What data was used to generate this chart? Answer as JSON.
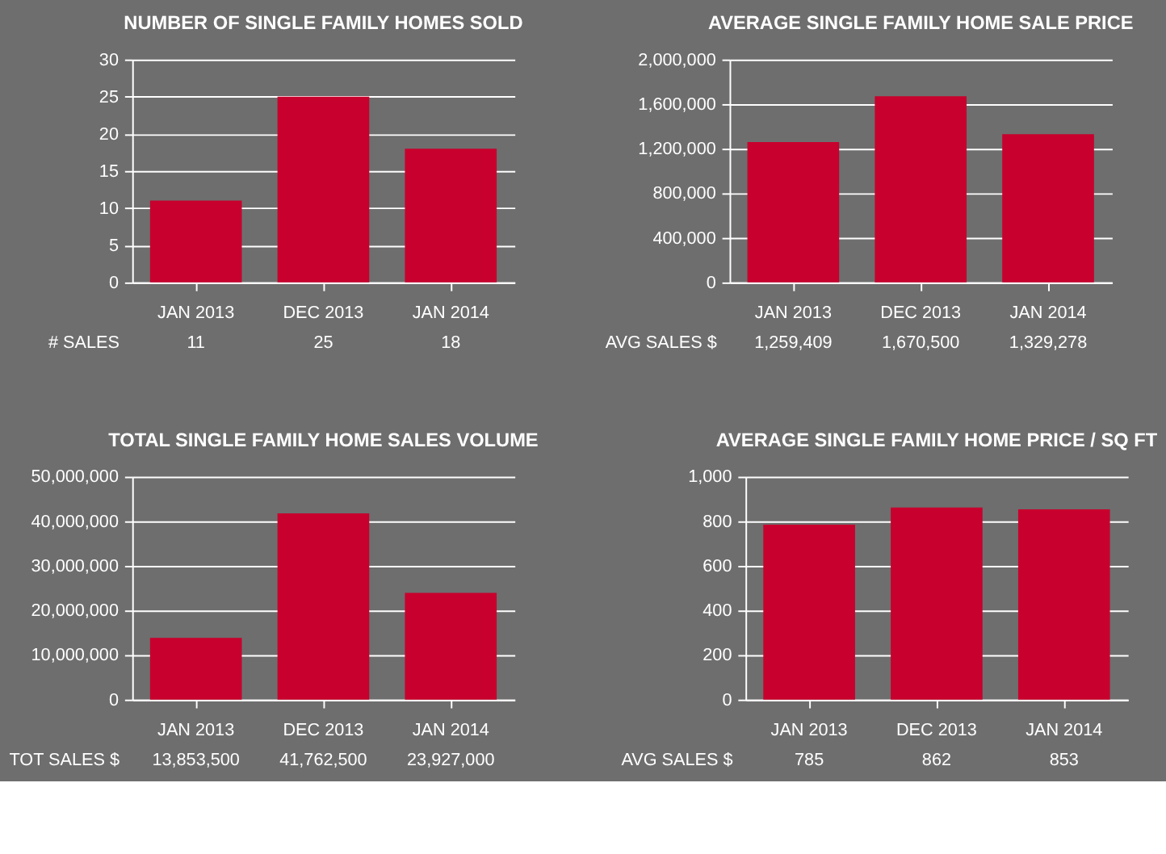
{
  "chart_data": [
    {
      "type": "bar",
      "title": "NUMBER OF SINGLE FAMILY HOMES SOLD",
      "categories": [
        "JAN 2013",
        "DEC 2013",
        "JAN 2014"
      ],
      "values": [
        11,
        25,
        18
      ],
      "color": "#c8002d",
      "ylim": [
        0,
        30
      ],
      "yticks": [
        0,
        5,
        10,
        15,
        20,
        25,
        30
      ],
      "grid": "y",
      "value_labels": [
        "11",
        "25",
        "18"
      ],
      "annotations": [
        "# SALES"
      ]
    },
    {
      "type": "bar",
      "title": "AVERAGE SINGLE FAMILY HOME SALE PRICE",
      "categories": [
        "JAN 2013",
        "DEC 2013",
        "JAN 2014"
      ],
      "values": [
        1259409,
        1670500,
        1329278
      ],
      "color": "#c8002d",
      "ylim": [
        0,
        2000000
      ],
      "yticks": [
        0,
        {
          "value": 400000,
          "label": "400,000"
        },
        {
          "value": 800000,
          "label": "800,000"
        },
        {
          "value": 1200000,
          "label": "1,200,000"
        },
        {
          "value": 1600000,
          "label": "1,600,000"
        },
        {
          "value": 2000000,
          "label": "2,000,000"
        }
      ],
      "grid": "y",
      "value_labels": [
        "1,259,409",
        "1,670,500",
        "1,329,278"
      ],
      "annotations": [
        "AVG SALES $"
      ]
    },
    {
      "type": "bar",
      "title": "TOTAL SINGLE FAMILY HOME SALES VOLUME",
      "categories": [
        "JAN 2013",
        "DEC 2013",
        "JAN 2014"
      ],
      "values": [
        13853500,
        41762500,
        23927000
      ],
      "color": "#c8002d",
      "ylim": [
        0,
        50000000
      ],
      "yticks": [
        0,
        {
          "value": 10000000,
          "label": "10,000,000"
        },
        {
          "value": 20000000,
          "label": "20,000,000"
        },
        {
          "value": 30000000,
          "label": "30,000,000"
        },
        {
          "value": 40000000,
          "label": "40,000,000"
        },
        {
          "value": 50000000,
          "label": "50,000,000"
        }
      ],
      "grid": "y",
      "value_labels": [
        "13,853,500",
        "41,762,500",
        "23,927,000"
      ],
      "annotations": [
        "TOT SALES $"
      ]
    },
    {
      "type": "bar",
      "title": "AVERAGE SINGLE FAMILY HOME PRICE / SQ FT",
      "categories": [
        "JAN 2013",
        "DEC 2013",
        "JAN 2014"
      ],
      "values": [
        785,
        862,
        853
      ],
      "color": "#c8002d",
      "ylim": [
        0,
        1000
      ],
      "yticks": [
        0,
        200,
        400,
        600,
        800,
        {
          "value": 1000,
          "label": "1,000"
        }
      ],
      "grid": "y",
      "value_labels": [
        "785",
        "862",
        "853"
      ],
      "annotations": [
        "AVG SALES $"
      ]
    }
  ]
}
